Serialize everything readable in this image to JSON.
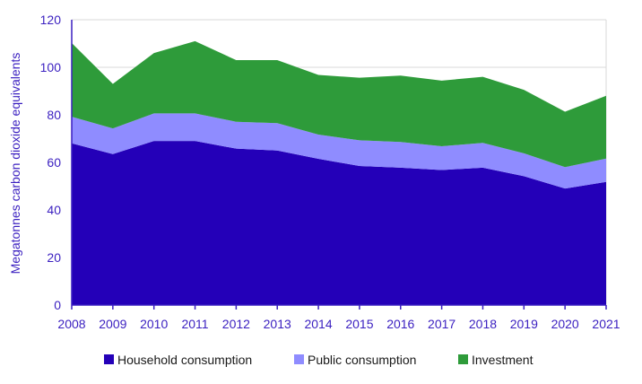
{
  "chart_data": {
    "type": "area",
    "stacked": true,
    "title": "",
    "xlabel": "",
    "ylabel": "Megatonnes carbon dioxide equivalents",
    "ylim": [
      0,
      120
    ],
    "yticks": [
      "0",
      "20",
      "40",
      "60",
      "80",
      "100",
      "120"
    ],
    "categories": [
      "2008",
      "2009",
      "2010",
      "2011",
      "2012",
      "2013",
      "2014",
      "2015",
      "2016",
      "2017",
      "2018",
      "2019",
      "2020",
      "2021"
    ],
    "series": [
      {
        "name": "Household consumption",
        "color": "#2400b8",
        "values": [
          68,
          63.5,
          69,
          69,
          65.8,
          65,
          61.5,
          58.5,
          57.8,
          56.8,
          57.8,
          54.2,
          49,
          51.8
        ]
      },
      {
        "name": "Public consumption",
        "color": "#8f8cff",
        "values": [
          11.2,
          10.8,
          11.6,
          11.6,
          11.3,
          11.5,
          10.2,
          10.8,
          10.8,
          10,
          10.4,
          9.6,
          9,
          9.8
        ]
      },
      {
        "name": "Investment",
        "color": "#2e9b3a",
        "values": [
          31,
          18.7,
          25.4,
          30.4,
          25.9,
          26.5,
          25.1,
          26.3,
          27.9,
          27.6,
          27.8,
          26.7,
          23.3,
          26.4
        ]
      }
    ],
    "legend_position": "bottom",
    "grid": true
  }
}
